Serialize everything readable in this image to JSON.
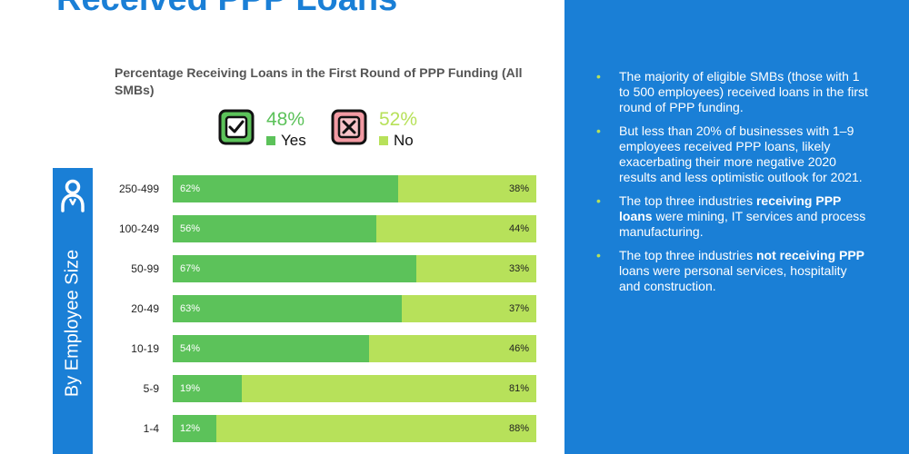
{
  "headline": "Received PPP Loans",
  "chart_data": {
    "type": "bar",
    "orientation": "horizontal",
    "stacked": true,
    "title": "Percentage Receiving Loans in the First Round of PPP Funding (All SMBs)",
    "ylabel": "By Employee Size",
    "categories": [
      "250-499",
      "100-249",
      "50-99",
      "20-49",
      "10-19",
      "5-9",
      "1-4"
    ],
    "series": [
      {
        "name": "Yes",
        "values": [
          62,
          56,
          67,
          63,
          54,
          19,
          12
        ],
        "labels": [
          "62%",
          "56%",
          "67%",
          "63%",
          "54%",
          "19%",
          "12%"
        ],
        "color": "#5cc25a"
      },
      {
        "name": "No",
        "values": [
          38,
          44,
          33,
          37,
          46,
          81,
          88
        ],
        "labels": [
          "38%",
          "44%",
          "33%",
          "37%",
          "46%",
          "81%",
          "88%"
        ],
        "color": "#b7e15a"
      }
    ],
    "xlim": [
      0,
      100
    ]
  },
  "legend": {
    "yes": {
      "pct": "48%",
      "label": "Yes",
      "color": "#5cc25a",
      "icon": "checkmark-icon"
    },
    "no": {
      "pct": "52%",
      "label": "No",
      "color": "#b7e15a",
      "icon": "x-mark-icon"
    }
  },
  "side_icon": "person-icon",
  "bullets": [
    [
      {
        "t": "The majority of eligible SMBs (those with 1 to 500 employees) received loans in the first round of PPP funding.",
        "b": false
      }
    ],
    [
      {
        "t": "But less than 20% of businesses with 1–9 employees received PPP loans, likely exacerbating their more negative 2020 results and less optimistic outlook for 2021.",
        "b": false
      }
    ],
    [
      {
        "t": "The top three industries ",
        "b": false
      },
      {
        "t": "receiving PPP loans",
        "b": true
      },
      {
        "t": " were mining, IT services and process manufacturing.",
        "b": false
      }
    ],
    [
      {
        "t": "The top three industries ",
        "b": false
      },
      {
        "t": "not receiving PPP",
        "b": true
      },
      {
        "t": " loans were personal services, hospitality and construction.",
        "b": false
      }
    ]
  ],
  "colors": {
    "accent_blue": "#1a7fd6",
    "yes_green": "#5cc25a",
    "no_green": "#b7e15a"
  }
}
